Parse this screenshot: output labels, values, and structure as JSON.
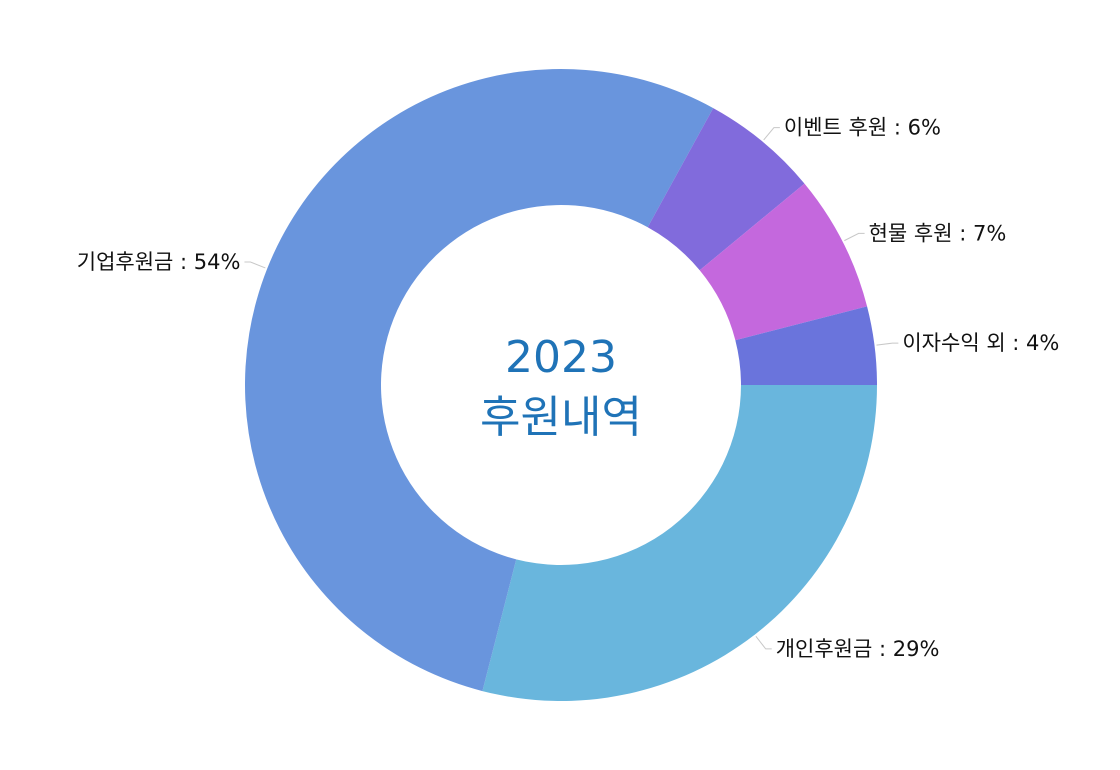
{
  "chart_data": {
    "type": "pie",
    "donut": true,
    "center_title": "2023",
    "center_subtitle": "후원내역",
    "start_angle_deg": 90,
    "direction": "clockwise-from-right",
    "slices": [
      {
        "label": "개인후원금 : 29%",
        "value": 29,
        "color": "#69b6dd"
      },
      {
        "label": "기업후원금 : 54%",
        "value": 54,
        "color": "#6995dd"
      },
      {
        "label": "이벤트 후원 : 6%",
        "value": 6,
        "color": "#816bdc"
      },
      {
        "label": "현물 후원 : 7%",
        "value": 7,
        "color": "#c468dd"
      },
      {
        "label": "이자수익 외 : 4%",
        "value": 4,
        "color": "#6a74dc"
      }
    ],
    "colors": {
      "center_text": "#1f73b7",
      "label_text": "#111111",
      "leader_line": "#c8c8c8"
    }
  }
}
